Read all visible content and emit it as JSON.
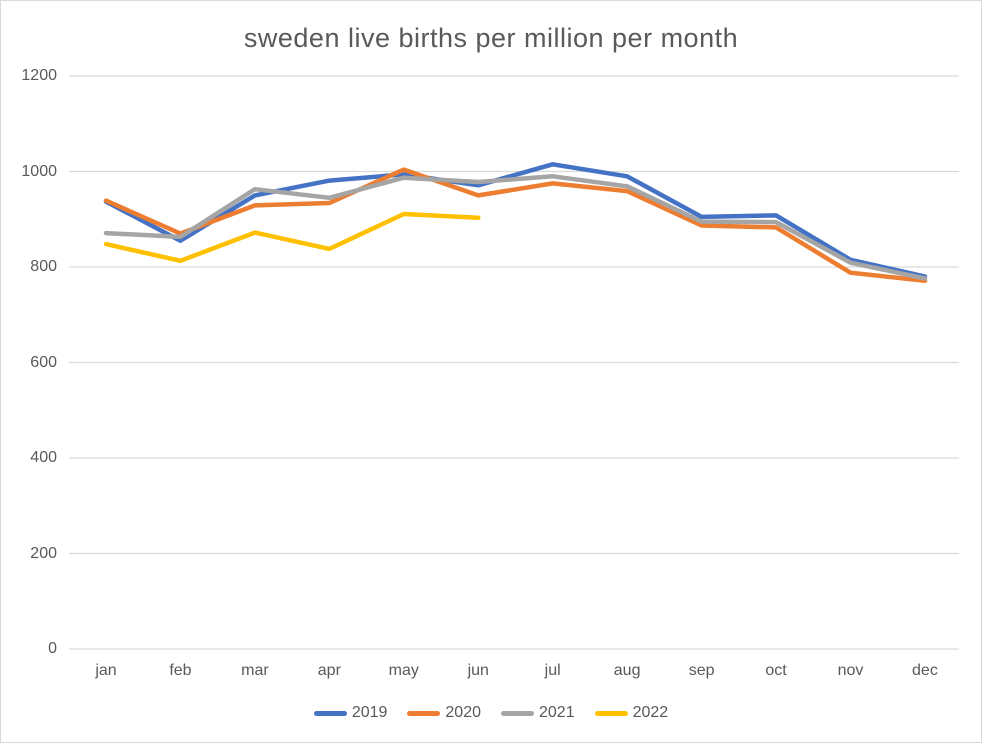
{
  "chart_data": {
    "type": "line",
    "title": "sweden live births per million per month",
    "categories": [
      "jan",
      "feb",
      "mar",
      "apr",
      "may",
      "jun",
      "jul",
      "aug",
      "sep",
      "oct",
      "nov",
      "dec"
    ],
    "series": [
      {
        "name": "2019",
        "color": "#4472C4",
        "values": [
          937,
          855,
          950,
          981,
          994,
          971,
          1015,
          990,
          905,
          908,
          815,
          780
        ]
      },
      {
        "name": "2020",
        "color": "#ED7D31",
        "values": [
          939,
          870,
          929,
          934,
          1004,
          950,
          975,
          959,
          887,
          883,
          788,
          771
        ]
      },
      {
        "name": "2021",
        "color": "#A5A5A5",
        "values": [
          871,
          863,
          963,
          945,
          987,
          978,
          990,
          969,
          895,
          894,
          809,
          776
        ]
      },
      {
        "name": "2022",
        "color": "#FFC000",
        "values": [
          848,
          813,
          872,
          838,
          911,
          903,
          null,
          null,
          null,
          null,
          null,
          null
        ]
      }
    ],
    "ylim": [
      0,
      1200
    ],
    "yticks": [
      0,
      200,
      400,
      600,
      800,
      1000,
      1200
    ],
    "grid": true,
    "legend_position": "bottom",
    "text_color": "#595959",
    "gridline_color": "#D9D9D9"
  }
}
